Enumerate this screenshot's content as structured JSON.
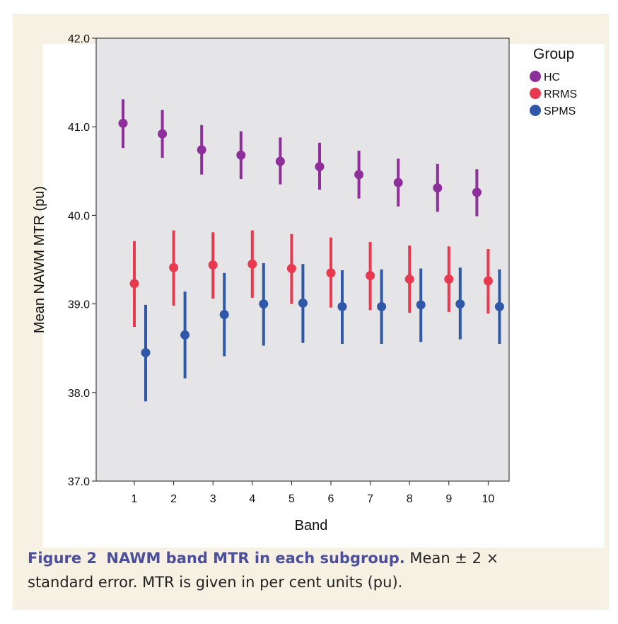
{
  "figure": {
    "label": "Figure 2",
    "title": "NAWM band MTR in each subgroup.",
    "caption_line1": "Mean ± 2 ×",
    "caption_line2": "standard error. MTR is given in per cent units (pu)."
  },
  "chart_data": {
    "type": "scatter",
    "xlabel": "Band",
    "ylabel": "Mean NAWM MTR (pu)",
    "categories": [
      "1",
      "2",
      "3",
      "4",
      "5",
      "6",
      "7",
      "8",
      "9",
      "10"
    ],
    "ylim": [
      37.0,
      42.0
    ],
    "yticks": [
      "37.0",
      "38.0",
      "39.0",
      "40.0",
      "41.0",
      "42.0"
    ],
    "grid": false,
    "legend": {
      "title": "Group",
      "placement": "right",
      "entries": [
        "HC",
        "RRMS",
        "SPMS"
      ]
    },
    "series": [
      {
        "name": "HC",
        "color": "#8e2e9a",
        "mean": [
          41.04,
          40.92,
          40.74,
          40.68,
          40.61,
          40.55,
          40.46,
          40.37,
          40.31,
          40.26
        ],
        "lower": [
          40.76,
          40.65,
          40.46,
          40.41,
          40.35,
          40.29,
          40.19,
          40.1,
          40.04,
          39.99
        ],
        "upper": [
          41.31,
          41.19,
          41.02,
          40.95,
          40.88,
          40.82,
          40.73,
          40.64,
          40.58,
          40.52
        ]
      },
      {
        "name": "RRMS",
        "color": "#e8394f",
        "mean": [
          39.23,
          39.41,
          39.44,
          39.45,
          39.4,
          39.35,
          39.32,
          39.28,
          39.28,
          39.26
        ],
        "lower": [
          38.74,
          38.98,
          39.06,
          39.07,
          39.0,
          38.96,
          38.93,
          38.9,
          38.91,
          38.89
        ],
        "upper": [
          39.71,
          39.83,
          39.81,
          39.83,
          39.79,
          39.75,
          39.7,
          39.66,
          39.65,
          39.62
        ]
      },
      {
        "name": "SPMS",
        "color": "#2f58a8",
        "mean": [
          38.45,
          38.65,
          38.88,
          39.0,
          39.01,
          38.97,
          38.97,
          38.99,
          39.0,
          38.97
        ],
        "lower": [
          37.9,
          38.16,
          38.41,
          38.53,
          38.56,
          38.55,
          38.55,
          38.57,
          38.6,
          38.55
        ],
        "upper": [
          38.99,
          39.14,
          39.35,
          39.46,
          39.45,
          39.38,
          39.39,
          39.4,
          39.41,
          39.39
        ]
      }
    ]
  }
}
